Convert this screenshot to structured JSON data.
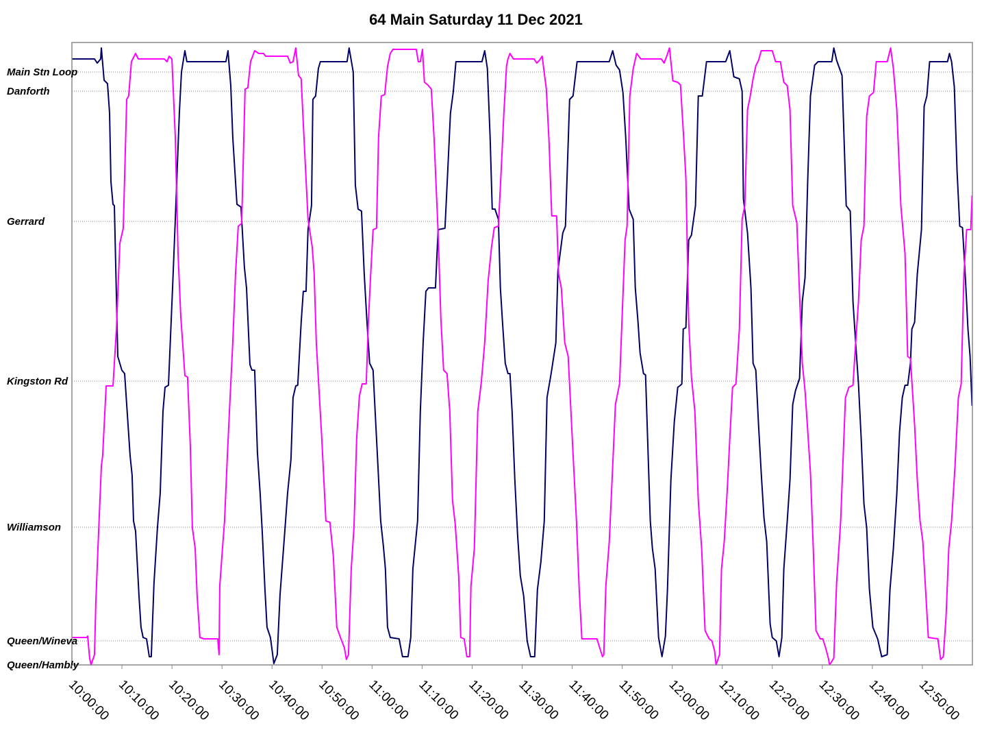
{
  "chart_data": {
    "type": "line",
    "title": "64 Main Saturday 11 Dec 2021",
    "xlim": [
      "10:00:00",
      "13:00:00"
    ],
    "xticks": [
      "10:00:00",
      "10:10:00",
      "10:20:00",
      "10:30:00",
      "10:40:00",
      "10:50:00",
      "11:00:00",
      "11:10:00",
      "11:20:00",
      "11:30:00",
      "11:40:00",
      "11:50:00",
      "12:00:00",
      "12:10:00",
      "12:20:00",
      "12:30:00",
      "12:40:00",
      "12:50:00"
    ],
    "ylim": [
      0,
      9.08
    ],
    "yticks": [
      {
        "value": 0,
        "label": "Queen/Hambly"
      },
      {
        "value": 0.35,
        "label": "Queen/Wineva"
      },
      {
        "value": 2.01,
        "label": "Williamson"
      },
      {
        "value": 4.14,
        "label": "Kingston Rd"
      },
      {
        "value": 6.47,
        "label": "Gerrard"
      },
      {
        "value": 8.37,
        "label": "Danforth"
      },
      {
        "value": 8.65,
        "label": "Main Stn Loop"
      }
    ],
    "grid": true,
    "series": [
      {
        "color": "#000066",
        "x": [
          "10:00:00",
          "10:04:31",
          "10:05:04",
          "10:05:45",
          "10:05:53",
          "10:06:26",
          "10:07:07",
          "10:07:32",
          "10:07:48",
          "10:08:13",
          "10:08:29",
          "10:09:10",
          "10:09:59",
          "10:10:32",
          "10:10:57",
          "10:11:38",
          "10:12:02",
          "10:12:19",
          "10:12:44",
          "10:13:25",
          "10:13:49",
          "10:14:14",
          "10:14:55",
          "10:15:28",
          "10:15:52",
          "10:16:25",
          "10:17:06",
          "10:17:39",
          "10:18:12",
          "10:18:37",
          "10:19:18",
          "10:20:07",
          "10:20:40",
          "10:21:29",
          "10:21:54",
          "10:22:35",
          "10:22:59",
          "10:30:47",
          "10:31:12",
          "10:31:45",
          "10:32:09",
          "10:32:59",
          "10:33:48",
          "10:34:29",
          "10:34:54",
          "10:35:35",
          "10:35:59",
          "10:36:32",
          "10:37:05",
          "10:37:38",
          "10:38:02",
          "10:38:35",
          "10:39:00",
          "10:39:41",
          "10:40:22",
          "10:41:03",
          "10:41:36",
          "10:42:33",
          "10:43:06",
          "10:43:47",
          "10:44:12",
          "10:44:45",
          "10:45:09",
          "10:45:50",
          "10:46:15",
          "10:46:48",
          "10:47:12",
          "10:47:54",
          "10:48:10",
          "10:48:43",
          "10:49:16",
          "10:49:40",
          "10:55:00",
          "10:55:25",
          "10:56:14",
          "10:56:39",
          "10:57:12",
          "10:57:53",
          "10:58:26",
          "10:58:59",
          "10:59:31",
          "11:00:12",
          "11:00:37",
          "11:01:10",
          "11:01:43",
          "11:02:16",
          "11:02:40",
          "11:03:05",
          "11:03:38",
          "11:05:24",
          "11:06:05",
          "11:07:11",
          "11:07:44",
          "11:08:09",
          "11:09:06",
          "11:09:39",
          "11:10:12",
          "11:10:45",
          "11:11:17",
          "11:12:40",
          "11:13:12",
          "11:14:34",
          "11:15:07",
          "11:15:40",
          "11:16:13",
          "11:16:46",
          "11:21:58",
          "11:22:31",
          "11:23:03",
          "11:23:36",
          "11:24:01",
          "11:24:34",
          "11:25:15",
          "11:25:39",
          "11:26:04",
          "11:26:37",
          "11:27:10",
          "11:27:34",
          "11:27:59",
          "11:28:32",
          "11:29:05",
          "11:29:38",
          "11:30:19",
          "11:31:00",
          "11:31:41",
          "11:32:30",
          "11:33:03",
          "11:33:44",
          "11:34:25",
          "11:34:58",
          "11:35:47",
          "11:36:44",
          "11:37:09",
          "11:38:07",
          "11:38:39",
          "11:39:29",
          "11:40:10",
          "11:40:59",
          "11:47:25",
          "11:48:06",
          "11:48:47",
          "11:49:28",
          "11:50:09",
          "11:50:42",
          "11:51:23",
          "11:52:12",
          "11:52:37",
          "11:53:10",
          "11:53:34",
          "11:54:15",
          "11:54:40",
          "11:55:05",
          "11:55:37",
          "11:56:02",
          "11:56:35",
          "11:57:16",
          "11:57:57",
          "11:58:38",
          "11:59:03",
          "11:59:44",
          "12:00:25",
          "12:01:06",
          "12:01:39",
          "12:01:55",
          "12:02:12",
          "12:02:44",
          "12:03:17",
          "12:03:50",
          "12:04:39",
          "12:05:12",
          "12:06:01",
          "12:06:51",
          "12:10:41",
          "12:11:30",
          "12:12:19",
          "12:13:25",
          "12:13:58",
          "12:14:14",
          "12:15:03",
          "12:15:44",
          "12:16:09",
          "12:16:42",
          "12:17:15",
          "12:17:47",
          "12:18:20",
          "12:18:53",
          "12:19:34",
          "12:19:59",
          "12:20:48",
          "12:21:21",
          "12:21:54",
          "12:22:18",
          "12:22:59",
          "12:23:32",
          "12:24:05",
          "12:24:38",
          "12:25:27",
          "12:26:00",
          "12:26:33",
          "12:27:06",
          "12:27:38",
          "12:28:28",
          "12:29:09",
          "12:31:53",
          "12:32:18",
          "12:32:51",
          "12:33:56",
          "12:34:46",
          "12:35:35",
          "12:36:08",
          "12:36:40",
          "12:37:13",
          "12:37:46",
          "12:38:19",
          "12:38:52",
          "12:39:25",
          "12:40:06",
          "12:41:03",
          "12:41:52",
          "12:42:58",
          "12:43:31",
          "12:44:12",
          "12:44:53",
          "12:45:26",
          "12:45:59",
          "12:46:32",
          "12:47:04",
          "12:47:37",
          "12:47:54",
          "12:48:27",
          "12:48:59",
          "12:49:49",
          "12:50:21",
          "12:50:54",
          "12:51:27",
          "12:55:01",
          "12:55:25",
          "12:55:50",
          "12:56:23",
          "12:56:56",
          "12:57:28",
          "12:58:01",
          "12:58:34",
          "12:59:07",
          "12:59:32",
          "12:59:56"
        ],
        "values": [
          8.84,
          8.84,
          8.78,
          8.84,
          9.0,
          8.53,
          8.48,
          8.05,
          7.05,
          6.72,
          6.7,
          4.5,
          4.3,
          4.25,
          3.8,
          3.05,
          2.77,
          2.1,
          1.95,
          1.0,
          0.55,
          0.4,
          0.38,
          0.12,
          0.12,
          1.2,
          2.0,
          2.5,
          3.7,
          4.05,
          4.08,
          5.5,
          6.5,
          8.05,
          8.65,
          8.96,
          8.8,
          8.8,
          8.96,
          8.45,
          7.7,
          6.72,
          6.68,
          5.8,
          5.5,
          4.38,
          4.3,
          4.3,
          3.1,
          2.5,
          1.95,
          1.1,
          0.55,
          0.4,
          0.02,
          0.15,
          1.02,
          1.95,
          2.5,
          3.0,
          3.9,
          4.07,
          4.08,
          5.0,
          5.45,
          5.45,
          6.35,
          6.7,
          8.25,
          8.3,
          8.7,
          8.8,
          8.8,
          9.0,
          8.65,
          7.0,
          6.65,
          6.62,
          5.7,
          5.0,
          4.4,
          4.3,
          3.7,
          2.9,
          2.1,
          1.73,
          1.4,
          0.55,
          0.4,
          0.38,
          0.12,
          0.12,
          0.4,
          1.4,
          2.1,
          3.7,
          4.7,
          5.45,
          5.5,
          5.5,
          6.35,
          6.37,
          7.2,
          8.05,
          8.35,
          8.8,
          8.8,
          8.96,
          8.7,
          7.7,
          6.65,
          6.65,
          6.5,
          5.5,
          5.0,
          4.4,
          4.25,
          4.25,
          3.7,
          2.7,
          1.9,
          1.3,
          1.0,
          0.35,
          0.12,
          0.12,
          1.1,
          1.5,
          2.1,
          3.9,
          4.25,
          4.7,
          5.75,
          6.3,
          6.4,
          8.25,
          8.3,
          8.8,
          8.8,
          8.96,
          8.75,
          8.68,
          8.35,
          7.7,
          6.65,
          6.5,
          5.5,
          5.0,
          4.55,
          4.25,
          4.23,
          3.3,
          2.1,
          1.7,
          1.4,
          0.4,
          0.12,
          0.42,
          1.1,
          2.7,
          3.55,
          4.05,
          4.08,
          4.1,
          4.9,
          4.92,
          6.2,
          6.27,
          6.7,
          8.3,
          8.3,
          8.8,
          8.8,
          8.96,
          8.58,
          8.55,
          8.37,
          6.8,
          6.3,
          5.5,
          4.4,
          4.3,
          3.5,
          2.8,
          2.15,
          1.8,
          0.6,
          0.4,
          0.35,
          0.12,
          0.4,
          1.4,
          2.1,
          2.7,
          3.8,
          4.0,
          4.18,
          5.3,
          5.65,
          7.1,
          8.3,
          8.75,
          8.8,
          8.8,
          9.0,
          8.82,
          8.6,
          6.7,
          6.62,
          5.3,
          4.7,
          4.1,
          3.3,
          2.35,
          2.0,
          1.1,
          0.55,
          0.38,
          0.12,
          0.15,
          1.1,
          1.7,
          2.5,
          3.4,
          3.9,
          4.08,
          4.08,
          4.4,
          4.9,
          5.0,
          5.7,
          6.35,
          8.15,
          8.3,
          8.8,
          8.8,
          8.92,
          8.8,
          8.43,
          7.2,
          6.4,
          6.38,
          5.7,
          4.9,
          4.5,
          3.78
        ]
      },
      {
        "color": "#ff00ff",
        "x": [
          "10:00:00",
          "10:03:01",
          "10:03:09",
          "10:03:33",
          "10:03:50",
          "10:04:31",
          "10:04:47",
          "10:05:12",
          "10:05:53",
          "10:06:09",
          "10:06:51",
          "10:08:13",
          "10:08:54",
          "10:09:35",
          "10:10:16",
          "10:10:57",
          "10:11:21",
          "10:11:54",
          "10:12:44",
          "10:13:16",
          "10:18:28",
          "10:19:01",
          "10:19:26",
          "10:19:59",
          "10:20:40",
          "10:21:13",
          "10:21:45",
          "10:22:35",
          "10:23:07",
          "10:23:40",
          "10:24:05",
          "10:24:38",
          "10:25:02",
          "10:25:35",
          "10:26:25",
          "10:29:09",
          "10:29:25",
          "10:29:33",
          "10:30:06",
          "10:30:31",
          "10:31:04",
          "10:31:37",
          "10:32:09",
          "10:32:42",
          "10:33:15",
          "10:33:56",
          "10:34:37",
          "10:35:10",
          "10:35:43",
          "10:36:32",
          "10:37:21",
          "10:38:19",
          "10:38:43",
          "10:43:06",
          "10:43:39",
          "10:44:12",
          "10:44:45",
          "10:45:18",
          "10:45:50",
          "10:46:15",
          "10:47:12",
          "10:48:02",
          "10:48:26",
          "10:48:51",
          "10:49:24",
          "10:49:57",
          "10:50:46",
          "10:51:35",
          "10:52:16",
          "10:52:57",
          "10:53:47",
          "10:54:28",
          "10:54:52",
          "10:55:17",
          "10:55:50",
          "10:56:23",
          "10:56:55",
          "10:57:28",
          "10:58:01",
          "10:58:50",
          "10:59:15",
          "10:59:40",
          "11:00:12",
          "11:00:53",
          "11:01:18",
          "11:01:51",
          "11:02:32",
          "11:03:05",
          "11:03:38",
          "11:04:10",
          "11:08:50",
          "11:09:14",
          "11:09:39",
          "11:10:04",
          "11:10:28",
          "11:11:09",
          "11:11:50",
          "11:12:23",
          "11:13:12",
          "11:13:45",
          "11:14:18",
          "11:14:59",
          "11:15:32",
          "11:16:05",
          "11:16:38",
          "11:17:19",
          "11:17:43",
          "11:18:24",
          "11:18:57",
          "11:19:30",
          "11:19:46",
          "11:20:27",
          "11:21:08",
          "11:21:50",
          "11:22:31",
          "11:23:12",
          "11:23:53",
          "11:24:26",
          "11:25:15",
          "11:25:48",
          "11:26:21",
          "11:26:53",
          "11:27:10",
          "11:27:34",
          "11:28:15",
          "11:32:22",
          "11:32:55",
          "11:33:27",
          "11:34:00",
          "11:34:50",
          "11:35:22",
          "11:35:55",
          "11:36:53",
          "11:37:17",
          "11:37:50",
          "11:38:31",
          "11:39:12",
          "11:39:45",
          "11:40:18",
          "11:40:51",
          "11:41:24",
          "11:41:56",
          "11:44:57",
          "11:45:30",
          "11:46:03",
          "11:46:19",
          "11:46:44",
          "11:47:25",
          "11:47:58",
          "11:48:39",
          "11:49:28",
          "11:49:53",
          "11:50:34",
          "11:50:58",
          "11:51:31",
          "11:52:12",
          "11:52:53",
          "11:53:43",
          "11:57:49",
          "11:58:22",
          "11:58:54",
          "11:59:27",
          "12:00:08",
          "12:01:06",
          "12:01:39",
          "12:02:12",
          "12:02:44",
          "12:03:17",
          "12:03:50",
          "12:04:31",
          "12:05:12",
          "12:05:53",
          "12:06:34",
          "12:07:23",
          "12:07:56",
          "12:08:29",
          "12:08:46",
          "12:09:27",
          "12:09:51",
          "12:10:24",
          "12:10:57",
          "12:11:30",
          "12:12:03",
          "12:12:44",
          "12:13:25",
          "12:13:58",
          "12:14:30",
          "12:15:03",
          "12:15:36",
          "12:16:09",
          "12:16:42",
          "12:17:15",
          "12:17:47",
          "12:19:59",
          "12:20:40",
          "12:21:37",
          "12:22:18",
          "12:22:59",
          "12:23:32",
          "12:24:05",
          "12:24:54",
          "12:25:27",
          "12:26:00",
          "12:26:33",
          "12:27:06",
          "12:27:38",
          "12:28:11",
          "12:28:44",
          "12:29:34",
          "12:30:06",
          "12:30:39",
          "12:31:12",
          "12:31:28",
          "12:32:18",
          "12:32:51",
          "12:33:40",
          "12:34:37",
          "12:35:18",
          "12:36:08",
          "12:36:40",
          "12:37:13",
          "12:37:46",
          "12:38:19",
          "12:38:52",
          "12:39:25",
          "12:40:14",
          "12:40:47",
          "12:42:58",
          "12:43:39",
          "12:44:12",
          "12:44:53",
          "12:45:42",
          "12:46:32",
          "12:47:04",
          "12:47:37",
          "12:48:27",
          "12:48:59",
          "12:49:32",
          "12:50:05",
          "12:50:38",
          "12:51:11",
          "12:53:06",
          "12:53:39",
          "12:54:11",
          "12:54:44",
          "12:55:17",
          "12:55:50",
          "12:56:31",
          "12:57:12",
          "12:57:45",
          "12:58:18",
          "12:58:51",
          "12:59:40",
          "12:59:56"
        ],
        "values": [
          0.4,
          0.4,
          0.42,
          0.1,
          0.0,
          0.15,
          0.9,
          1.7,
          2.9,
          3.05,
          4.07,
          4.07,
          4.9,
          6.15,
          6.37,
          8.25,
          8.3,
          8.8,
          8.92,
          8.84,
          8.84,
          8.8,
          8.88,
          8.84,
          7.7,
          6.0,
          5.1,
          4.22,
          4.2,
          3.2,
          2.0,
          1.7,
          1.0,
          0.4,
          0.38,
          0.38,
          0.15,
          1.15,
          1.7,
          2.1,
          3.05,
          3.9,
          4.7,
          5.7,
          6.4,
          6.44,
          8.4,
          8.42,
          8.8,
          8.96,
          8.92,
          8.92,
          8.88,
          8.88,
          8.78,
          8.8,
          9.0,
          8.6,
          8.55,
          7.9,
          6.5,
          6.1,
          5.7,
          4.7,
          4.0,
          3.3,
          2.1,
          2.08,
          1.58,
          0.55,
          0.38,
          0.25,
          0.08,
          0.15,
          1.4,
          2.0,
          3.3,
          3.92,
          4.1,
          4.1,
          5.0,
          5.62,
          6.35,
          6.37,
          7.7,
          8.3,
          8.32,
          8.73,
          8.92,
          8.98,
          8.98,
          8.8,
          8.8,
          8.98,
          8.5,
          8.46,
          8.4,
          7.7,
          6.3,
          5.05,
          4.3,
          4.25,
          3.7,
          2.4,
          2.05,
          1.3,
          0.4,
          0.38,
          0.12,
          0.12,
          1.15,
          1.7,
          3.7,
          4.12,
          4.7,
          5.6,
          6.1,
          6.38,
          6.4,
          7.2,
          8.05,
          8.74,
          8.84,
          8.92,
          8.84,
          8.84,
          8.78,
          8.82,
          8.88,
          8.4,
          7.65,
          6.55,
          6.55,
          5.7,
          5.5,
          4.7,
          4.5,
          3.7,
          2.9,
          2.1,
          1.1,
          0.38,
          0.38,
          0.25,
          0.12,
          0.15,
          1.15,
          1.8,
          2.7,
          3.8,
          4.1,
          4.9,
          6.2,
          6.4,
          8.3,
          8.7,
          8.92,
          8.84,
          8.84,
          8.78,
          8.88,
          9.0,
          8.52,
          8.5,
          8.46,
          7.8,
          7.1,
          5.0,
          4.2,
          3.7,
          2.4,
          1.7,
          0.5,
          0.38,
          0.35,
          0.2,
          0.0,
          0.15,
          1.4,
          1.8,
          2.5,
          3.3,
          4.05,
          4.1,
          4.9,
          6.5,
          6.7,
          8.1,
          8.3,
          8.55,
          8.74,
          8.82,
          8.96,
          8.96,
          8.8,
          8.8,
          8.5,
          8.45,
          8.1,
          6.7,
          6.45,
          5.4,
          4.4,
          4.0,
          3.4,
          2.8,
          1.7,
          0.5,
          0.38,
          0.38,
          0.25,
          0.1,
          0.0,
          0.1,
          1.2,
          2.1,
          3.9,
          4.05,
          4.08,
          4.7,
          5.3,
          6.2,
          6.4,
          8.0,
          8.3,
          8.35,
          8.8,
          8.8,
          9.0,
          8.7,
          8.1,
          6.7,
          6.0,
          4.5,
          4.47,
          3.5,
          2.7,
          2.1,
          1.8,
          1.1,
          0.4,
          0.38,
          0.08,
          0.12,
          0.7,
          1.7,
          2.1,
          2.9,
          3.9,
          4.1,
          5.7,
          6.35,
          6.35,
          6.85
        ]
      }
    ]
  }
}
